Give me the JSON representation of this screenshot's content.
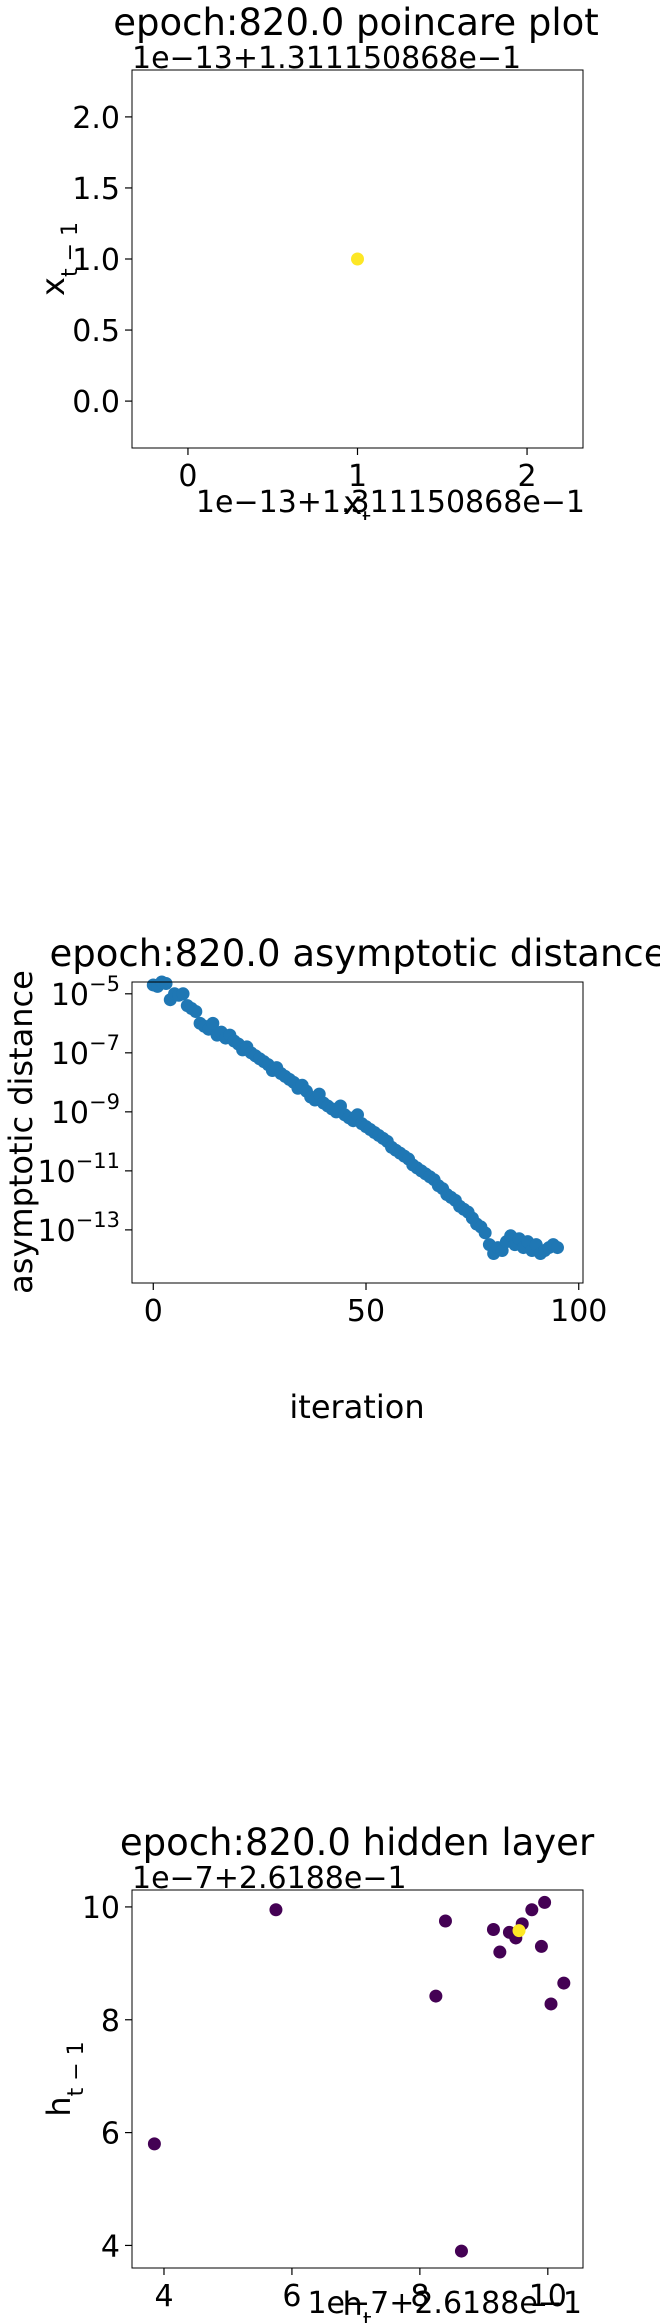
{
  "chart_data": [
    {
      "type": "scatter",
      "title": "epoch:820.0 poincare plot",
      "xlabel": "x_t",
      "ylabel": "x_{t-1}",
      "x_offset_label": "1e−13+1.311150868e−1",
      "y_offset_label": "1e−13+1.311150868e−1",
      "xlim": [
        -0.33,
        2.33
      ],
      "ylim": [
        -0.33,
        2.33
      ],
      "x_ticks": [
        {
          "v": 0,
          "label": "0"
        },
        {
          "v": 1,
          "label": "1"
        },
        {
          "v": 2,
          "label": "2"
        }
      ],
      "y_ticks": [
        {
          "v": 0.0,
          "label": "0.0"
        },
        {
          "v": 0.5,
          "label": "0.5"
        },
        {
          "v": 1.0,
          "label": "1.0"
        },
        {
          "v": 1.5,
          "label": "1.5"
        },
        {
          "v": 2.0,
          "label": "2.0"
        }
      ],
      "points": [
        {
          "x": 1.0,
          "y": 1.0,
          "color": "#fde725"
        }
      ]
    },
    {
      "type": "scatter",
      "title": "epoch:820.0 asymptotic distance",
      "xlabel": "iteration",
      "ylabel": "asymptotic distance",
      "y_scale": "log",
      "xlim": [
        -5,
        101
      ],
      "ylim_log10": [
        -14.8,
        -4.6
      ],
      "color": "#1f77b4",
      "x_ticks": [
        {
          "v": 0,
          "label": "0"
        },
        {
          "v": 50,
          "label": "50"
        },
        {
          "v": 100,
          "label": "100"
        }
      ],
      "y_ticks": [
        {
          "v": -5,
          "label_base": "10",
          "label_exp": "−5"
        },
        {
          "v": -7,
          "label_base": "10",
          "label_exp": "−7"
        },
        {
          "v": -9,
          "label_base": "10",
          "label_exp": "−9"
        },
        {
          "v": -11,
          "label_base": "10",
          "label_exp": "−11"
        },
        {
          "v": -13,
          "label_base": "10",
          "label_exp": "−13"
        }
      ],
      "x": [
        0,
        1,
        2,
        3,
        4,
        5,
        6,
        7,
        8,
        9,
        10,
        11,
        12,
        13,
        14,
        15,
        16,
        17,
        18,
        19,
        20,
        21,
        22,
        23,
        24,
        25,
        26,
        27,
        28,
        29,
        30,
        31,
        32,
        33,
        34,
        35,
        36,
        37,
        38,
        39,
        40,
        41,
        42,
        43,
        44,
        45,
        46,
        47,
        48,
        49,
        50,
        51,
        52,
        53,
        54,
        55,
        56,
        57,
        58,
        59,
        60,
        61,
        62,
        63,
        64,
        65,
        66,
        67,
        68,
        69,
        70,
        71,
        72,
        73,
        74,
        75,
        76,
        77,
        78,
        79,
        80,
        81,
        82,
        83,
        84,
        85,
        86,
        87,
        88,
        89,
        90,
        91,
        92,
        93,
        94,
        95
      ],
      "log10_y": [
        -4.7,
        -4.75,
        -4.6,
        -4.65,
        -5.2,
        -5.0,
        -5.05,
        -5.0,
        -5.4,
        -5.5,
        -5.6,
        -6.0,
        -6.1,
        -6.2,
        -6.0,
        -6.4,
        -6.3,
        -6.5,
        -6.4,
        -6.6,
        -6.7,
        -6.9,
        -6.8,
        -7.0,
        -7.1,
        -7.2,
        -7.3,
        -7.4,
        -7.6,
        -7.5,
        -7.7,
        -7.8,
        -7.9,
        -8.0,
        -8.2,
        -8.1,
        -8.3,
        -8.5,
        -8.6,
        -8.4,
        -8.7,
        -8.8,
        -8.9,
        -9.0,
        -8.8,
        -9.1,
        -9.2,
        -9.3,
        -9.1,
        -9.4,
        -9.5,
        -9.6,
        -9.7,
        -9.8,
        -9.9,
        -10.0,
        -10.2,
        -10.3,
        -10.4,
        -10.5,
        -10.6,
        -10.8,
        -10.9,
        -11.0,
        -11.1,
        -11.2,
        -11.3,
        -11.5,
        -11.6,
        -11.8,
        -11.9,
        -12.0,
        -12.2,
        -12.3,
        -12.4,
        -12.6,
        -12.8,
        -12.9,
        -13.1,
        -13.5,
        -13.8,
        -13.6,
        -13.7,
        -13.4,
        -13.2,
        -13.5,
        -13.3,
        -13.6,
        -13.4,
        -13.7,
        -13.5,
        -13.8,
        -13.7,
        -13.6,
        -13.5,
        -13.6
      ]
    },
    {
      "type": "scatter",
      "title": "epoch:820.0 hidden layer",
      "xlabel": "h_t",
      "ylabel": "h_{t-1}",
      "x_offset_label": "1e−7+2.6188e−1",
      "y_offset_label": "1e−7+2.6188e−1",
      "xlim": [
        3.5,
        10.55
      ],
      "ylim": [
        3.6,
        10.3
      ],
      "x_ticks": [
        {
          "v": 4,
          "label": "4"
        },
        {
          "v": 6,
          "label": "6"
        },
        {
          "v": 8,
          "label": "8"
        },
        {
          "v": 10,
          "label": "10"
        }
      ],
      "y_ticks": [
        {
          "v": 4,
          "label": "4"
        },
        {
          "v": 6,
          "label": "6"
        },
        {
          "v": 8,
          "label": "8"
        },
        {
          "v": 10,
          "label": "10"
        }
      ],
      "points": [
        {
          "x": 3.85,
          "y": 5.8,
          "color": "#440154"
        },
        {
          "x": 5.75,
          "y": 9.95,
          "color": "#440154"
        },
        {
          "x": 8.65,
          "y": 3.9,
          "color": "#440154"
        },
        {
          "x": 8.25,
          "y": 8.42,
          "color": "#440154"
        },
        {
          "x": 8.4,
          "y": 9.75,
          "color": "#440154"
        },
        {
          "x": 9.15,
          "y": 9.6,
          "color": "#440154"
        },
        {
          "x": 9.25,
          "y": 9.2,
          "color": "#440154"
        },
        {
          "x": 9.4,
          "y": 9.55,
          "color": "#440154"
        },
        {
          "x": 9.5,
          "y": 9.45,
          "color": "#440154"
        },
        {
          "x": 9.6,
          "y": 9.7,
          "color": "#440154"
        },
        {
          "x": 9.75,
          "y": 9.95,
          "color": "#440154"
        },
        {
          "x": 9.9,
          "y": 9.3,
          "color": "#440154"
        },
        {
          "x": 9.95,
          "y": 10.08,
          "color": "#440154"
        },
        {
          "x": 10.05,
          "y": 8.28,
          "color": "#440154"
        },
        {
          "x": 10.25,
          "y": 8.65,
          "color": "#440154"
        },
        {
          "x": 9.55,
          "y": 9.58,
          "color": "#fde725"
        }
      ]
    }
  ]
}
